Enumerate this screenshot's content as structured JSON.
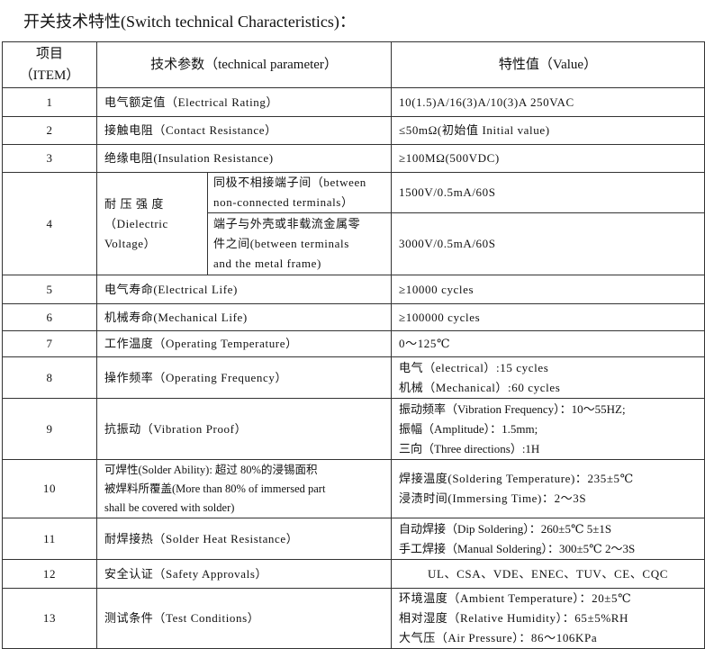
{
  "title": "开关技术特性(Switch technical Characteristics)：",
  "header": {
    "item_cn": "项目",
    "item_en": "（ITEM）",
    "param": "技术参数（technical parameter）",
    "value": "特性值（Value）"
  },
  "rows": [
    {
      "item": "1",
      "param": "电气额定值（Electrical Rating）",
      "value": [
        "10(1.5)A/16(3)A/10(3)A  250VAC"
      ]
    },
    {
      "item": "2",
      "param": "接触电阻（Contact  Resistance）",
      "value": [
        "≤50mΩ(初始值 Initial value)"
      ]
    },
    {
      "item": "3",
      "param": "绝缘电阻(Insulation Resistance)",
      "value": [
        "≥100MΩ(500VDC)"
      ]
    },
    {
      "item": "4",
      "param_main": [
        "耐 压 强 度",
        "（Dielectric",
        "Voltage）"
      ],
      "sub": [
        {
          "param": [
            "同极不相接端子间（between",
            "non-connected terminals）"
          ],
          "value": "1500V/0.5mA/60S"
        },
        {
          "param": [
            "端子与外壳或非载流金属零",
            "件之间(between terminals",
            "and the metal frame)"
          ],
          "value": "3000V/0.5mA/60S"
        }
      ]
    },
    {
      "item": "5",
      "param": "电气寿命(Electrical Life)",
      "value": [
        "≥10000 cycles"
      ]
    },
    {
      "item": "6",
      "param": "机械寿命(Mechanical Life)",
      "value": [
        "≥100000 cycles"
      ]
    },
    {
      "item": "7",
      "param": "工作温度（Operating Temperature）",
      "value": [
        "0～125℃"
      ]
    },
    {
      "item": "8",
      "param": "操作频率（Operating Frequency）",
      "value": [
        "电气（electrical）:15 cycles",
        "机械（Mechanical）:60 cycles"
      ]
    },
    {
      "item": "9",
      "param": "抗振动（Vibration Proof）",
      "value": [
        "振动频率（Vibration Frequency）：10～55HZ;",
        "振幅（Amplitude）：1.5mm;",
        "三向（Three directions）:1H"
      ]
    },
    {
      "item": "10",
      "param_lines": [
        "可焊性(Solder Ability): 超过 80%的浸锡面积",
        "被焊料所覆盖(More than 80% of immersed part",
        "shall be covered with solder)"
      ],
      "value": [
        "焊接温度(Soldering Temperature)：235±5℃",
        "浸渍时间(Immersing Time)：2～3S"
      ]
    },
    {
      "item": "11",
      "param": "耐焊接热（Solder Heat Resistance）",
      "value": [
        "自动焊接（Dip Soldering）：260±5℃ 5±1S",
        "手工焊接（Manual Soldering）：300±5℃ 2～3S"
      ]
    },
    {
      "item": "12",
      "param": "安全认证（Safety Approvals）",
      "value": [
        "UL、CSA、VDE、ENEC、TUV、CE、CQC"
      ]
    },
    {
      "item": "13",
      "param": "测试条件（Test Conditions）",
      "value": [
        "环境温度（Ambient Temperature）：20±5℃",
        "相对湿度（Relative Humidity）：65±5%RH",
        "大气压（Air Pressure）：86～106KPa"
      ]
    }
  ]
}
